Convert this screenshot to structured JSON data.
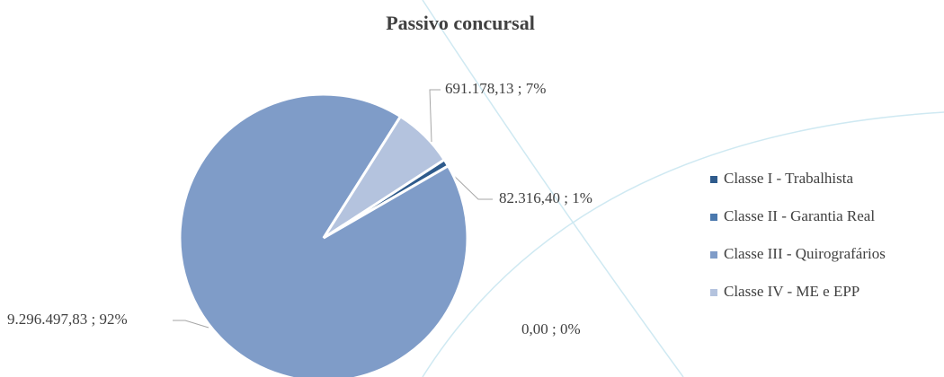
{
  "chart_data": {
    "type": "pie",
    "title": "Passivo concursal",
    "categories": [
      "Classe I - Trabalhista",
      "Classe II - Garantia Real",
      "Classe III - Quirografários",
      "Classe IV - ME e EPP"
    ],
    "values": [
      82316.4,
      0.0,
      9296497.83,
      691178.13
    ],
    "value_labels": [
      "82.316,40 ; 1%",
      "0,00 ; 0%",
      "9.296.497,83 ; 92%",
      "691.178,13 ; 7%"
    ],
    "colors": [
      "#2f5b8c",
      "#4a78ad",
      "#7f9cc8",
      "#b4c3de"
    ],
    "legend": "right"
  }
}
